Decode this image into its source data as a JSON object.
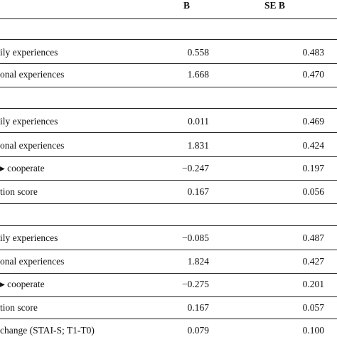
{
  "table": {
    "headers": {
      "b": "B",
      "se_b": "SE B"
    },
    "rows": [
      {
        "label": "ily experiences",
        "b": "0.558",
        "se": "0.483"
      },
      {
        "label": "onal experiences",
        "b": "1.668",
        "se": "0.470"
      },
      {
        "label": "ily experiences",
        "b": "0.011",
        "se": "0.469"
      },
      {
        "label": "onal experiences",
        "b": "1.831",
        "se": "0.424"
      },
      {
        "label": "▸ cooperate",
        "b": "−0.247",
        "se": "0.197"
      },
      {
        "label": "tion score",
        "b": "0.167",
        "se": "0.056"
      },
      {
        "label": "ily experiences",
        "b": "−0.085",
        "se": "0.487"
      },
      {
        "label": "onal experiences",
        "b": "1.824",
        "se": "0.427"
      },
      {
        "label": "▸ cooperate",
        "b": "−0.275",
        "se": "0.201"
      },
      {
        "label": "tion score",
        "b": "0.167",
        "se": "0.057"
      },
      {
        "label": "change (STAI-S; T1-T0)",
        "b": "0.079",
        "se": "0.100"
      }
    ]
  }
}
